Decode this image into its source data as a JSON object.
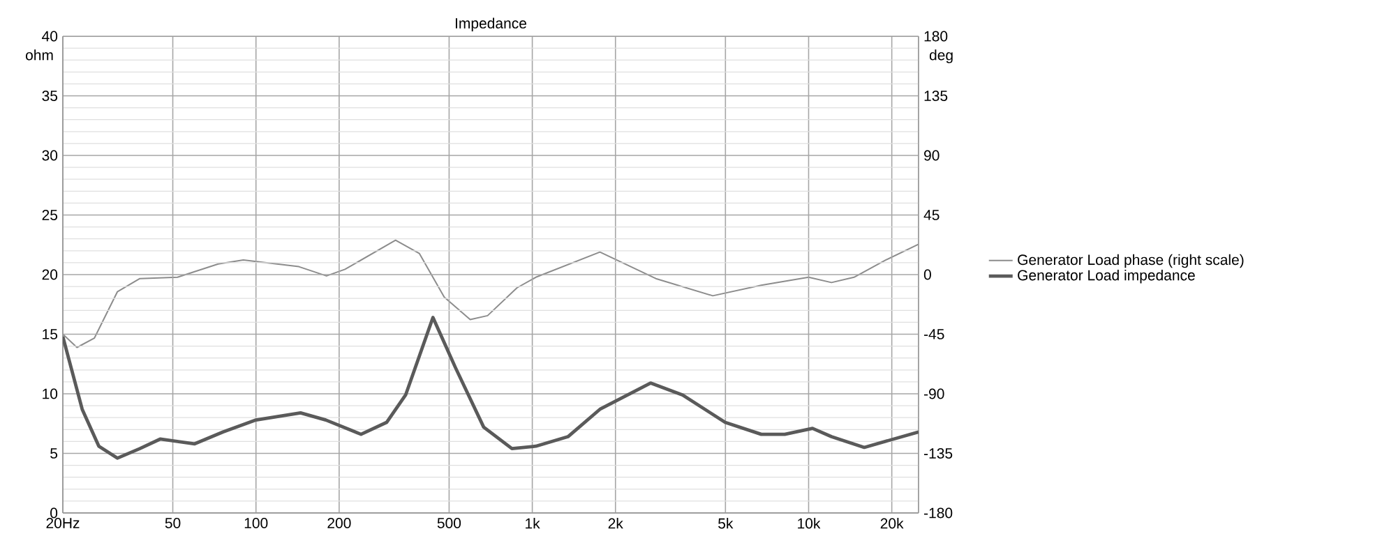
{
  "chart_data": {
    "type": "line",
    "title": "Impedance",
    "ylabel": "ohm",
    "y2label": "deg",
    "log": "x",
    "grid": true,
    "legend": "right",
    "xlim": [
      20,
      25000
    ],
    "ylim": [
      0,
      40
    ],
    "y2lim": [
      -180,
      180
    ],
    "xticks": [
      {
        "value": 20,
        "label": "20Hz"
      },
      50,
      100,
      200,
      500,
      {
        "value": 1000,
        "label": "1k"
      },
      {
        "value": 2000,
        "label": "2k"
      },
      {
        "value": 5000,
        "label": "5k"
      },
      {
        "value": 10000,
        "label": "10k"
      },
      {
        "value": 20000,
        "label": "20k"
      }
    ],
    "yticks": [
      0,
      5,
      10,
      15,
      20,
      25,
      30,
      35,
      40
    ],
    "y2ticks": [
      -180,
      -135,
      -90,
      -45,
      0,
      45,
      90,
      135,
      180
    ],
    "series": [
      {
        "name": "Generator Load phase (right scale)",
        "color": "#8c8c8c",
        "axis": "y2",
        "x": [
          20,
          22.5,
          26,
          31.5,
          38,
          52,
          73,
          90,
          143,
          180,
          210,
          320,
          390,
          480,
          596,
          689,
          880,
          1030,
          1757,
          2800,
          4500,
          6740,
          10000,
          12100,
          14600,
          19000,
          25000
        ],
        "values": [
          -45,
          -55,
          -48,
          -13,
          -3,
          -2,
          8,
          11,
          6,
          -1,
          4,
          26,
          16,
          -17,
          -34,
          -31,
          -10,
          -2,
          17,
          -3,
          -16,
          -8,
          -2,
          -6,
          -2,
          11,
          23
        ]
      },
      {
        "name": "Generator Load impedance",
        "color": "#5a5a5a",
        "x": [
          20,
          23.5,
          27,
          31.5,
          38,
          45,
          60,
          76,
          100,
          145,
          179,
          240,
          297,
          348,
          437,
          527,
          667,
          844,
          1030,
          1346,
          1757,
          2679,
          3500,
          4990,
          6740,
          8200,
          10330,
          12100,
          15900,
          25000
        ],
        "values": [
          14.8,
          8.7,
          5.6,
          4.6,
          5.4,
          6.2,
          5.8,
          6.8,
          7.8,
          8.4,
          7.8,
          6.6,
          7.6,
          9.9,
          16.4,
          12.2,
          7.2,
          5.4,
          5.6,
          6.4,
          8.7,
          10.9,
          9.9,
          7.6,
          6.6,
          6.6,
          7.1,
          6.4,
          5.5,
          6.8
        ]
      }
    ]
  }
}
